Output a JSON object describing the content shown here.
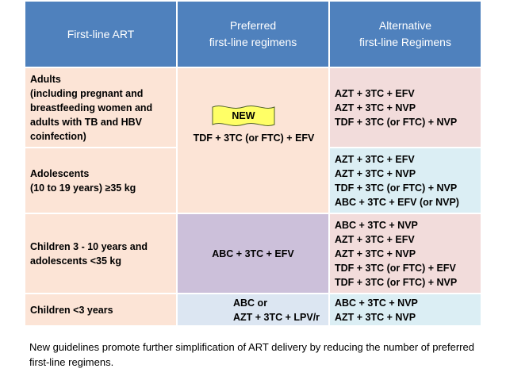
{
  "header": {
    "col1": [
      "First-line ART"
    ],
    "col2": [
      "Preferred",
      "first-line regimens"
    ],
    "col3": [
      "Alternative",
      "first-line Regimens"
    ]
  },
  "rows": [
    {
      "group": [
        "Adults",
        "(including pregnant and",
        "breastfeeding women and",
        "adults with TB and HBV",
        "coinfection)"
      ],
      "alternatives": [
        "AZT + 3TC + EFV",
        "AZT + 3TC + NVP",
        "TDF + 3TC (or FTC) + NVP"
      ]
    },
    {
      "group": [
        "Adolescents",
        "(10 to 19 years) ≥35 kg"
      ],
      "alternatives": [
        "AZT + 3TC + EFV",
        "AZT + 3TC + NVP",
        "TDF + 3TC (or FTC) + NVP",
        "ABC + 3TC + EFV (or NVP)"
      ]
    },
    {
      "group": [
        "Children 3 - 10 years and",
        "adolescents <35 kg"
      ],
      "preferred": [
        "ABC + 3TC + EFV"
      ],
      "alternatives": [
        "ABC + 3TC + NVP",
        "AZT + 3TC + EFV",
        "AZT + 3TC + NVP",
        "TDF + 3TC (or FTC) + EFV",
        "TDF + 3TC (or FTC) + NVP"
      ]
    },
    {
      "group": [
        "Children <3 years"
      ],
      "preferred": [
        "ABC or",
        "AZT + 3TC + LPV/r"
      ],
      "alternatives": [
        "ABC + 3TC + NVP",
        "AZT + 3TC + NVP"
      ]
    }
  ],
  "shared_preferred": [
    "TDF + 3TC (or FTC) + EFV"
  ],
  "badge": {
    "label": "NEW",
    "color": "#ffff66"
  },
  "footer": "New guidelines promote further simplification of ART delivery by reducing the number of preferred first-line regimens.",
  "colors": {
    "header": "#4f81bd",
    "peach": "#fce4d6",
    "lavender": "#ccc0da",
    "light_blue": "#dce6f2",
    "alt_pink": "#f2dcdb",
    "alt_blue": "#dbeef4"
  }
}
